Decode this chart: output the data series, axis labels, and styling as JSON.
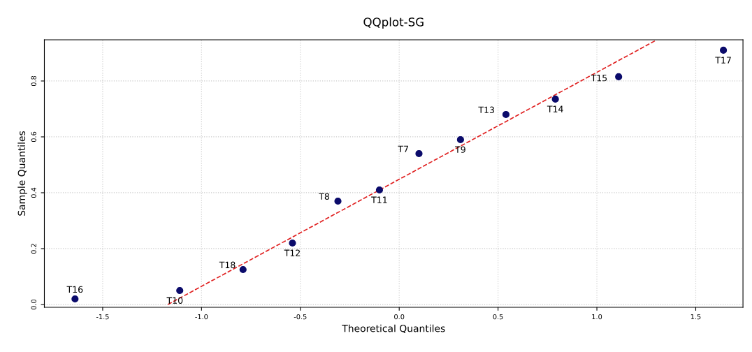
{
  "chart_data": {
    "type": "scatter",
    "title": "QQplot-SG",
    "xlabel": "Theoretical Quantiles",
    "ylabel": "Sample Quantiles",
    "x": [
      -1.64,
      -1.11,
      -0.79,
      -0.54,
      -0.31,
      -0.1,
      0.1,
      0.31,
      0.54,
      0.79,
      1.11,
      1.64
    ],
    "series": [
      {
        "color": "#0b0b6b",
        "values": [
          0.02,
          0.05,
          0.125,
          0.22,
          0.37,
          0.41,
          0.54,
          0.59,
          0.68,
          0.735,
          0.815,
          0.91
        ],
        "marker": "circle"
      },
      {
        "type": "line",
        "color": "#e02020",
        "x": [
          -1.17,
          1.3
        ],
        "values": [
          0.0,
          0.946
        ],
        "line_style": "dashed",
        "marker": "none"
      }
    ],
    "annotations": [
      {
        "text": "T16",
        "x": -1.64,
        "y": 0.02
      },
      {
        "text": "T10",
        "x": -1.11,
        "y": 0.05
      },
      {
        "text": "T18",
        "x": -0.79,
        "y": 0.125
      },
      {
        "text": "T12",
        "x": -0.54,
        "y": 0.22
      },
      {
        "text": "T8",
        "x": -0.31,
        "y": 0.37
      },
      {
        "text": "T11",
        "x": -0.1,
        "y": 0.41
      },
      {
        "text": "T7",
        "x": 0.1,
        "y": 0.54
      },
      {
        "text": "T9",
        "x": 0.31,
        "y": 0.59
      },
      {
        "text": "T13",
        "x": 0.54,
        "y": 0.68
      },
      {
        "text": "T14",
        "x": 0.79,
        "y": 0.735
      },
      {
        "text": "T15",
        "x": 1.11,
        "y": 0.815
      },
      {
        "text": "T17",
        "x": 1.64,
        "y": 0.91
      }
    ],
    "xlim": [
      -1.795,
      1.739
    ],
    "ylim": [
      -0.01,
      0.9475
    ],
    "xticks": [
      -1.5,
      {
        "value": -1,
        "label": "-1.0"
      },
      -0.5,
      {
        "value": 0,
        "label": "0.0"
      },
      0.5,
      {
        "value": 1,
        "label": "1.0"
      },
      1.5
    ],
    "yticks": [
      {
        "value": 0,
        "label": "0.0"
      },
      0.2,
      0.4,
      0.6,
      0.8
    ],
    "grid": true
  }
}
